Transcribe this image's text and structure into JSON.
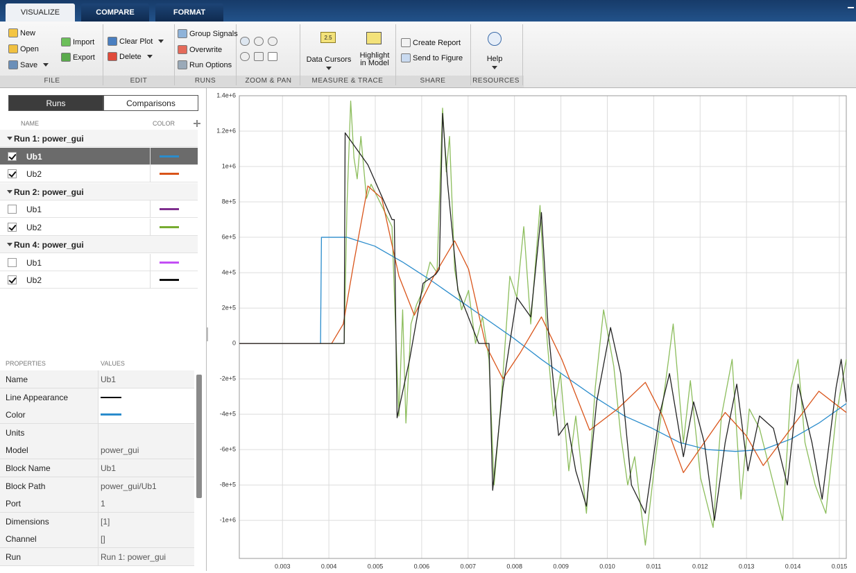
{
  "tabs": [
    "VISUALIZE",
    "COMPARE",
    "FORMAT"
  ],
  "toolstrip": [
    {
      "group": "FILE",
      "buttons": [
        "New",
        "Open",
        "Save",
        "Import",
        "Export"
      ]
    },
    {
      "group": "EDIT",
      "buttons": [
        "Clear Plot",
        "Delete"
      ]
    },
    {
      "group": "RUNS",
      "buttons": [
        "Group Signals",
        "Overwrite",
        "Run Options"
      ]
    },
    {
      "group": "ZOOM & PAN"
    },
    {
      "group": "MEASURE & TRACE",
      "buttons": [
        "Data Cursors",
        "Highlight in Model"
      ],
      "icon_text": "2.5"
    },
    {
      "group": "SHARE",
      "buttons": [
        "Create Report",
        "Send to Figure"
      ]
    },
    {
      "group": "RESOURCES",
      "buttons": [
        "Help"
      ]
    }
  ],
  "panel": {
    "toggle": [
      "Runs",
      "Comparisons"
    ],
    "columns": [
      "NAME",
      "COLOR"
    ],
    "runs": [
      {
        "name": "Run 1: power_gui",
        "signals": [
          {
            "name": "Ub1",
            "checked": true,
            "selected": true,
            "color": "#2a8ccc"
          },
          {
            "name": "Ub2",
            "checked": true,
            "color": "#d9541a"
          }
        ]
      },
      {
        "name": "Run 2: power_gui",
        "signals": [
          {
            "name": "Ub1",
            "checked": false,
            "color": "#7e2f8e"
          },
          {
            "name": "Ub2",
            "checked": true,
            "color": "#77ac30"
          }
        ]
      },
      {
        "name": "Run 4: power_gui",
        "signals": [
          {
            "name": "Ub1",
            "checked": false,
            "color": "#c34ef5"
          },
          {
            "name": "Ub2",
            "checked": true,
            "color": "#111111"
          }
        ]
      }
    ]
  },
  "properties": {
    "columns": [
      "PROPERTIES",
      "VALUES"
    ],
    "rows": [
      {
        "name": "Name",
        "value": "Ub1"
      },
      {
        "name": "Line Appearance",
        "line": "#000000"
      },
      {
        "name": "Color",
        "color": "#2a8ccc"
      },
      {
        "name": "Units"
      },
      {
        "name": "Model",
        "value": "power_gui"
      },
      {
        "name": "Block Name",
        "value": "Ub1"
      },
      {
        "name": "Block Path",
        "value": "power_gui/Ub1"
      },
      {
        "name": "Port",
        "value": "1"
      },
      {
        "name": "Dimensions",
        "value": "[1]"
      },
      {
        "name": "Channel",
        "value": "[]"
      },
      {
        "name": "Run",
        "value": "Run 1: power_gui"
      }
    ]
  },
  "chart_data": {
    "type": "line",
    "grid": true,
    "xlim": [
      0.00207,
      0.01515
    ],
    "ylim": [
      -1215000,
      1400000
    ],
    "xticks": [
      0.003,
      0.004,
      0.005,
      0.006,
      0.007,
      0.008,
      0.009,
      {
        "value": 0.01,
        "label": "0.010"
      },
      0.011,
      0.012,
      0.013,
      0.014,
      0.015
    ],
    "yticks": [
      {
        "value": 1400000,
        "label": "1.4e+6"
      },
      {
        "value": 1200000,
        "label": "1.2e+6"
      },
      {
        "value": 1000000,
        "label": "1e+6"
      },
      {
        "value": 800000,
        "label": "8e+5"
      },
      {
        "value": 600000,
        "label": "6e+5"
      },
      {
        "value": 400000,
        "label": "4e+5"
      },
      {
        "value": 200000,
        "label": "2e+5"
      },
      0,
      {
        "value": -200000,
        "label": "-2e+5"
      },
      {
        "value": -400000,
        "label": "-4e+5"
      },
      {
        "value": -600000,
        "label": "-6e+5"
      },
      {
        "value": -800000,
        "label": "-8e+5"
      },
      {
        "value": -1000000,
        "label": "-1e+6"
      }
    ],
    "series": [
      {
        "color": "#8cbd5c",
        "x": [
          0.00207,
          0.00433,
          0.00439,
          0.00447,
          0.00454,
          0.00461,
          0.00469,
          0.00481,
          0.00491,
          0.00506,
          0.00521,
          0.00536,
          0.00544,
          0.00551,
          0.00559,
          0.00566,
          0.00577,
          0.00589,
          0.00603,
          0.00618,
          0.00633,
          0.00645,
          0.00653,
          0.0066,
          0.00671,
          0.00686,
          0.00701,
          0.00716,
          0.00731,
          0.00745,
          0.00756,
          0.00771,
          0.0079,
          0.00805,
          0.0082,
          0.00835,
          0.00855,
          0.0087,
          0.00884,
          0.00899,
          0.00917,
          0.00932,
          0.00955,
          0.00974,
          0.00992,
          0.01014,
          0.01029,
          0.01044,
          0.01059,
          0.01082,
          0.01104,
          0.01124,
          0.01142,
          0.01164,
          0.01179,
          0.01201,
          0.01228,
          0.01246,
          0.01269,
          0.01288,
          0.01306,
          0.01328,
          0.01351,
          0.01378,
          0.01396,
          0.01411,
          0.01426,
          0.01448,
          0.01471,
          0.01493,
          0.01515
        ],
        "values": [
          0,
          0,
          780000,
          1370000,
          1050000,
          930000,
          1170000,
          820000,
          900000,
          820000,
          740000,
          660000,
          70000,
          -410000,
          190000,
          -450000,
          110000,
          220000,
          300000,
          460000,
          400000,
          1330000,
          970000,
          1170000,
          420000,
          190000,
          300000,
          0,
          150000,
          -90000,
          -800000,
          -330000,
          380000,
          260000,
          660000,
          110000,
          780000,
          30000,
          -410000,
          -170000,
          -720000,
          -410000,
          -960000,
          -250000,
          190000,
          -130000,
          -520000,
          -800000,
          -640000,
          -1140000,
          -640000,
          -250000,
          110000,
          -560000,
          -210000,
          -760000,
          -1040000,
          -410000,
          -90000,
          -880000,
          -370000,
          -480000,
          -720000,
          -1000000,
          -250000,
          -90000,
          -560000,
          -800000,
          -960000,
          -410000,
          -90000
        ]
      },
      {
        "color": "#2a8ccc",
        "x": [
          0.00207,
          0.00382,
          0.00384,
          0.00439,
          0.00499,
          0.00559,
          0.00618,
          0.00678,
          0.00738,
          0.00798,
          0.00858,
          0.00917,
          0.00977,
          0.01037,
          0.01097,
          0.01156,
          0.01216,
          0.01276,
          0.01336,
          0.01396,
          0.01456,
          0.01515
        ],
        "values": [
          0,
          0,
          600000,
          600000,
          550000,
          460000,
          360000,
          250000,
          140000,
          30000,
          -90000,
          -200000,
          -310000,
          -410000,
          -480000,
          -560000,
          -600000,
          -610000,
          -600000,
          -540000,
          -450000,
          -340000
        ]
      },
      {
        "color": "#d9541a",
        "x": [
          0.00207,
          0.00406,
          0.00431,
          0.00454,
          0.00484,
          0.00514,
          0.00551,
          0.00584,
          0.00626,
          0.00671,
          0.00701,
          0.00738,
          0.00775,
          0.00813,
          0.00858,
          0.00902,
          0.00962,
          0.01022,
          0.01082,
          0.01119,
          0.01164,
          0.01209,
          0.01254,
          0.01299,
          0.01336,
          0.01396,
          0.01456,
          0.01515
        ],
        "values": [
          0,
          0,
          110000,
          460000,
          890000,
          820000,
          380000,
          160000,
          380000,
          580000,
          420000,
          -10000,
          -200000,
          -50000,
          150000,
          -90000,
          -490000,
          -370000,
          -220000,
          -410000,
          -730000,
          -560000,
          -390000,
          -520000,
          -690000,
          -480000,
          -270000,
          -390000
        ]
      },
      {
        "color": "#222222",
        "x": [
          0.00207,
          0.00433,
          0.00435,
          0.00484,
          0.00536,
          0.00541,
          0.00547,
          0.00574,
          0.00603,
          0.0063,
          0.00638,
          0.00645,
          0.00656,
          0.00678,
          0.00723,
          0.00745,
          0.00753,
          0.00775,
          0.00805,
          0.00835,
          0.00858,
          0.00873,
          0.00895,
          0.00914,
          0.00932,
          0.00955,
          0.00977,
          0.01007,
          0.01029,
          0.01052,
          0.01082,
          0.01112,
          0.01134,
          0.01164,
          0.01186,
          0.01209,
          0.01231,
          0.01254,
          0.01279,
          0.01303,
          0.01328,
          0.01358,
          0.01388,
          0.01411,
          0.01441,
          0.01463,
          0.01493,
          0.01504,
          0.01515
        ],
        "values": [
          0,
          0,
          1190000,
          1010000,
          700000,
          700000,
          -420000,
          -90000,
          340000,
          390000,
          420000,
          1300000,
          900000,
          300000,
          0,
          0,
          -830000,
          -250000,
          260000,
          150000,
          740000,
          70000,
          -520000,
          -450000,
          -720000,
          -920000,
          -330000,
          90000,
          -170000,
          -800000,
          -960000,
          -410000,
          -170000,
          -640000,
          -330000,
          -560000,
          -1000000,
          -560000,
          -230000,
          -720000,
          -410000,
          -480000,
          -800000,
          -230000,
          -560000,
          -880000,
          -250000,
          -90000,
          -330000
        ]
      }
    ]
  }
}
